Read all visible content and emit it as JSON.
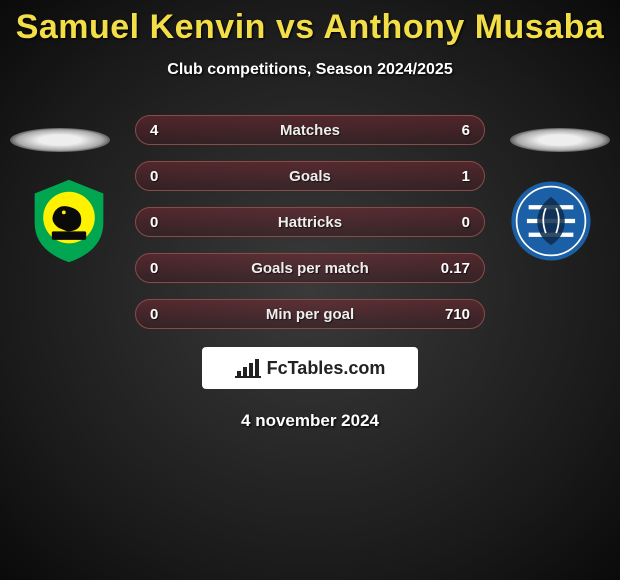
{
  "title_color": "#f3de47",
  "title_parts": {
    "player1": "Samuel Kenvin",
    "vs": "vs",
    "player2": "Anthony Musaba"
  },
  "subtitle": "Club competitions, Season 2024/2025",
  "brand_label": "FcTables.com",
  "date": "4 november 2024",
  "row_style": {
    "bg": "linear-gradient(to bottom, rgba(120,40,50,0.55), rgba(60,30,35,0.55))",
    "border": "#8a4a4a",
    "label_color": "#eee"
  },
  "rows": [
    {
      "label": "Matches",
      "left": "4",
      "right": "6"
    },
    {
      "label": "Goals",
      "left": "0",
      "right": "1"
    },
    {
      "label": "Hattricks",
      "left": "0",
      "right": "0"
    },
    {
      "label": "Goals per match",
      "left": "0",
      "right": "0.17"
    },
    {
      "label": "Min per goal",
      "left": "0",
      "right": "710"
    }
  ],
  "crests": {
    "left": {
      "outer": "#00a650",
      "inner": "#fff200",
      "accent": "#0a0a0a"
    },
    "right": {
      "outer": "#1b5fa6",
      "stripe": "#ffffff",
      "accent": "#0d2b4a"
    }
  }
}
